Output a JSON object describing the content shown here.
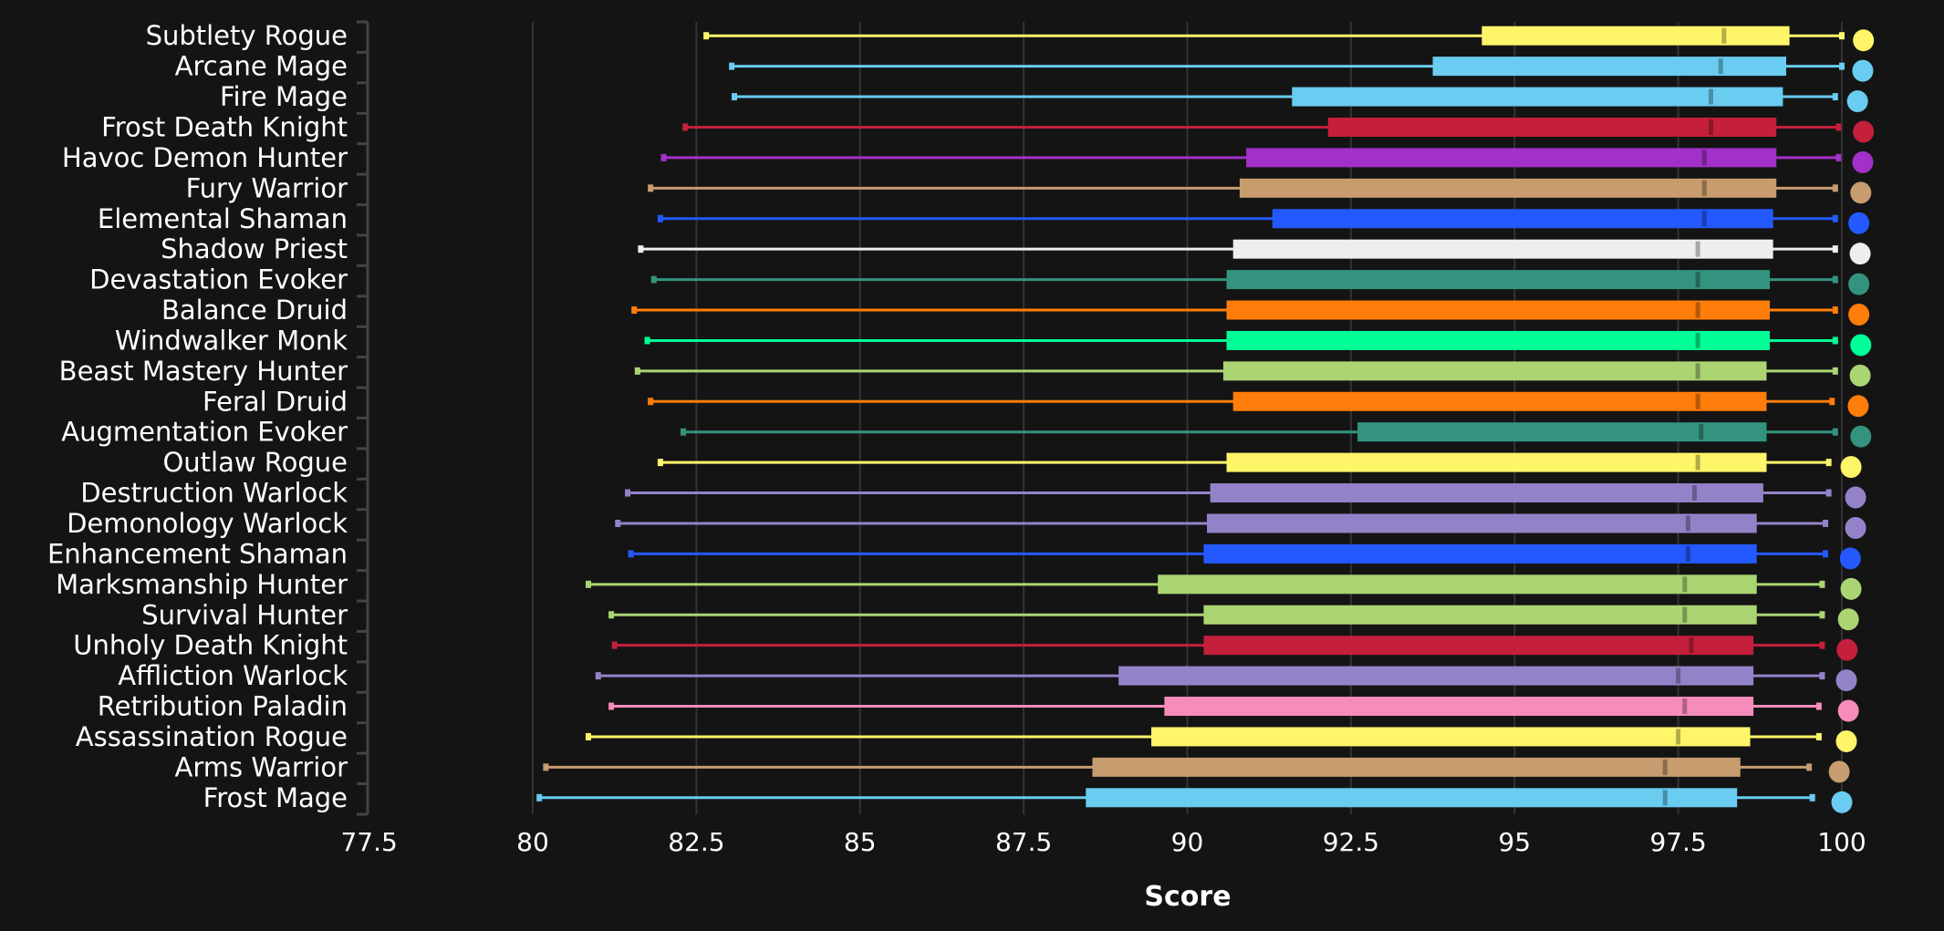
{
  "chart_data": {
    "type": "boxplot",
    "orientation": "horizontal",
    "title": "",
    "xlabel": "Score",
    "ylabel": "",
    "xlim": [
      77.5,
      100
    ],
    "xticks": [
      "77.5",
      "80",
      "82.5",
      "85",
      "87.5",
      "90",
      "92.5",
      "95",
      "97.5",
      "100"
    ],
    "grid": true,
    "legend": "none",
    "series": [
      {
        "name": "Subtlety Rogue",
        "color": "#FFF569",
        "min": 82.65,
        "q1": 94.5,
        "median": 98.2,
        "q3": 99.2,
        "max": 100.0,
        "outlier": 100.33
      },
      {
        "name": "Arcane Mage",
        "color": "#69CCF0",
        "min": 83.04,
        "q1": 93.75,
        "median": 98.15,
        "q3": 99.15,
        "max": 100.0,
        "outlier": 100.32
      },
      {
        "name": "Fire Mage",
        "color": "#69CCF0",
        "min": 83.08,
        "q1": 91.6,
        "median": 98.0,
        "q3": 99.1,
        "max": 99.9,
        "outlier": 100.24
      },
      {
        "name": "Frost Death Knight",
        "color": "#C41F3B",
        "min": 82.33,
        "q1": 92.15,
        "median": 98.0,
        "q3": 99.0,
        "max": 99.95,
        "outlier": 100.33
      },
      {
        "name": "Havoc Demon Hunter",
        "color": "#A330C9",
        "min": 82.0,
        "q1": 90.9,
        "median": 97.9,
        "q3": 99.0,
        "max": 99.95,
        "outlier": 100.32
      },
      {
        "name": "Fury Warrior",
        "color": "#C79C6E",
        "min": 81.8,
        "q1": 90.8,
        "median": 97.9,
        "q3": 99.0,
        "max": 99.9,
        "outlier": 100.29
      },
      {
        "name": "Elemental Shaman",
        "color": "#2459FF",
        "min": 81.95,
        "q1": 91.3,
        "median": 97.9,
        "q3": 98.95,
        "max": 99.9,
        "outlier": 100.26
      },
      {
        "name": "Shadow Priest",
        "color": "#EEEEEE",
        "min": 81.65,
        "q1": 90.7,
        "median": 97.8,
        "q3": 98.95,
        "max": 99.9,
        "outlier": 100.28
      },
      {
        "name": "Devastation Evoker",
        "color": "#33937F",
        "min": 81.85,
        "q1": 90.6,
        "median": 97.8,
        "q3": 98.9,
        "max": 99.9,
        "outlier": 100.26
      },
      {
        "name": "Balance Druid",
        "color": "#FF7D0A",
        "min": 81.55,
        "q1": 90.6,
        "median": 97.8,
        "q3": 98.9,
        "max": 99.9,
        "outlier": 100.26
      },
      {
        "name": "Windwalker Monk",
        "color": "#00FF96",
        "min": 81.75,
        "q1": 90.6,
        "median": 97.8,
        "q3": 98.9,
        "max": 99.9,
        "outlier": 100.29
      },
      {
        "name": "Beast Mastery Hunter",
        "color": "#ABD473",
        "min": 81.6,
        "q1": 90.55,
        "median": 97.8,
        "q3": 98.85,
        "max": 99.9,
        "outlier": 100.28
      },
      {
        "name": "Feral Druid",
        "color": "#FF7D0A",
        "min": 81.8,
        "q1": 90.7,
        "median": 97.8,
        "q3": 98.85,
        "max": 99.85,
        "outlier": 100.25
      },
      {
        "name": "Augmentation Evoker",
        "color": "#33937F",
        "min": 82.3,
        "q1": 92.6,
        "median": 97.85,
        "q3": 98.85,
        "max": 99.9,
        "outlier": 100.29
      },
      {
        "name": "Outlaw Rogue",
        "color": "#FFF569",
        "min": 81.95,
        "q1": 90.6,
        "median": 97.8,
        "q3": 98.85,
        "max": 99.8,
        "outlier": 100.14
      },
      {
        "name": "Destruction Warlock",
        "color": "#9482C9",
        "min": 81.45,
        "q1": 90.35,
        "median": 97.75,
        "q3": 98.8,
        "max": 99.8,
        "outlier": 100.21
      },
      {
        "name": "Demonology Warlock",
        "color": "#9482C9",
        "min": 81.3,
        "q1": 90.3,
        "median": 97.65,
        "q3": 98.7,
        "max": 99.75,
        "outlier": 100.21
      },
      {
        "name": "Enhancement Shaman",
        "color": "#2459FF",
        "min": 81.5,
        "q1": 90.25,
        "median": 97.65,
        "q3": 98.7,
        "max": 99.75,
        "outlier": 100.13
      },
      {
        "name": "Marksmanship Hunter",
        "color": "#ABD473",
        "min": 80.85,
        "q1": 89.55,
        "median": 97.6,
        "q3": 98.7,
        "max": 99.7,
        "outlier": 100.14
      },
      {
        "name": "Survival Hunter",
        "color": "#ABD473",
        "min": 81.2,
        "q1": 90.25,
        "median": 97.6,
        "q3": 98.7,
        "max": 99.7,
        "outlier": 100.1
      },
      {
        "name": "Unholy Death Knight",
        "color": "#C41F3B",
        "min": 81.25,
        "q1": 90.25,
        "median": 97.7,
        "q3": 98.65,
        "max": 99.7,
        "outlier": 100.08
      },
      {
        "name": "Affliction Warlock",
        "color": "#9482C9",
        "min": 81.0,
        "q1": 88.95,
        "median": 97.5,
        "q3": 98.65,
        "max": 99.7,
        "outlier": 100.07
      },
      {
        "name": "Retribution Paladin",
        "color": "#F58CBA",
        "min": 81.2,
        "q1": 89.65,
        "median": 97.6,
        "q3": 98.65,
        "max": 99.65,
        "outlier": 100.1
      },
      {
        "name": "Assassination Rogue",
        "color": "#FFF569",
        "min": 80.85,
        "q1": 89.45,
        "median": 97.5,
        "q3": 98.6,
        "max": 99.65,
        "outlier": 100.07
      },
      {
        "name": "Arms Warrior",
        "color": "#C79C6E",
        "min": 80.2,
        "q1": 88.55,
        "median": 97.3,
        "q3": 98.45,
        "max": 99.5,
        "outlier": 99.96
      },
      {
        "name": "Frost Mage",
        "color": "#69CCF0",
        "min": 80.1,
        "q1": 88.45,
        "median": 97.3,
        "q3": 98.4,
        "max": 99.55,
        "outlier": 100.0
      }
    ]
  },
  "colors": {
    "background": "#141414",
    "grid": "#333333",
    "axis": "#444444",
    "text": "#FFFFFF"
  }
}
